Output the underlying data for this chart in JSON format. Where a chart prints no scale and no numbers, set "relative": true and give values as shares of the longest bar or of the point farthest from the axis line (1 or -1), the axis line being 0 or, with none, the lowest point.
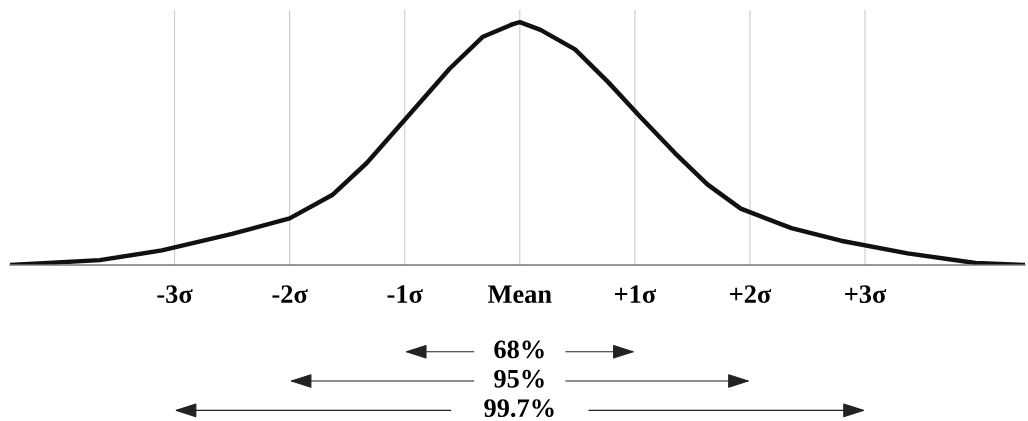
{
  "chart_data": {
    "type": "line",
    "relative": true,
    "x": [
      -4.43,
      -3.65,
      -3.11,
      -2.5,
      -2.0,
      -1.63,
      -1.33,
      -0.98,
      -0.61,
      -0.32,
      -0.06,
      0,
      0.18,
      0.48,
      0.77,
      1.05,
      1.35,
      1.63,
      1.92,
      2.36,
      2.79,
      3.37,
      3.96,
      4.39
    ],
    "series": [
      {
        "color": "#111111",
        "values": [
          0,
          0.02,
          0.06,
          0.128,
          0.192,
          0.288,
          0.42,
          0.608,
          0.808,
          0.94,
          0.992,
          1,
          0.968,
          0.888,
          0.752,
          0.608,
          0.46,
          0.332,
          0.232,
          0.152,
          0.1,
          0.048,
          0.008,
          0
        ]
      }
    ],
    "xlim": [
      -4.43,
      4.39
    ],
    "xticks": [
      {
        "value": -3,
        "label": "-3σ"
      },
      {
        "value": -2,
        "label": "-2σ"
      },
      {
        "value": -1,
        "label": "-1σ"
      },
      {
        "value": 0,
        "label": "Mean"
      },
      {
        "value": 1,
        "label": "+1σ"
      },
      {
        "value": 2,
        "label": "+2σ"
      },
      {
        "value": 3,
        "label": "+3σ"
      }
    ],
    "tick_labels": "x",
    "grid": "x",
    "marker": "none",
    "line_style": "solid",
    "annotations": [
      "68%",
      "95%",
      "99.7%"
    ]
  }
}
